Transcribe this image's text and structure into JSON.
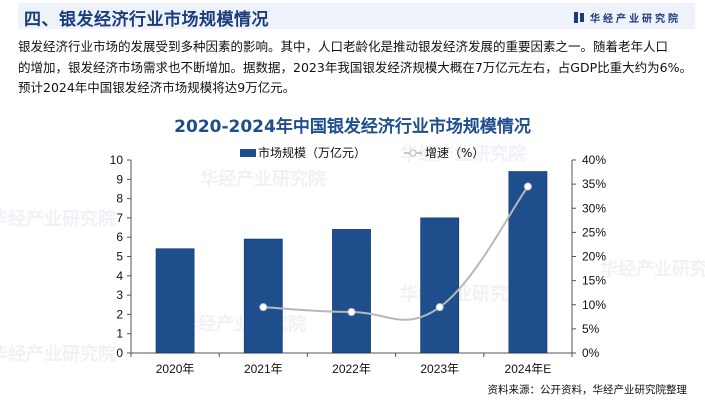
{
  "header": {
    "title": "四、银发经济行业市场规模情况",
    "brand": "华经产业研究院",
    "brand_icon": "book-logo-icon"
  },
  "intro": {
    "lines": [
      "银发经济行业市场的发展受到多种因素的影响。其中，人口老龄化是推动银发经济发展的重要因素之一。随着老年人口",
      "的增加，银发经济市场需求也不断增加。据数据，2023年我国银发经济规模大概在7万亿元左右，占GDP比重大约为6%。",
      "预计2024年中国银发经济市场规模将达9万亿元。"
    ]
  },
  "chart_data": {
    "type": "bar",
    "title": "2020-2024年中国银发经济行业市场规模情况",
    "categories": [
      "2020年",
      "2021年",
      "2022年",
      "2023年",
      "2024年E"
    ],
    "series": [
      {
        "name": "市场规模（万亿元）",
        "type": "bar",
        "axis": "left",
        "color": "#1f4e8c",
        "values": [
          5.4,
          5.9,
          6.4,
          7.0,
          9.4
        ]
      },
      {
        "name": "增速（%）",
        "type": "line",
        "axis": "right",
        "color": "#b8b8b8",
        "values": [
          null,
          9.5,
          8.5,
          9.5,
          34.5
        ]
      }
    ],
    "left_axis": {
      "min": 0,
      "max": 10,
      "step": 1,
      "ticks": [
        "0",
        "1",
        "2",
        "3",
        "4",
        "5",
        "6",
        "7",
        "8",
        "9",
        "10"
      ]
    },
    "right_axis": {
      "min": 0,
      "max": 40,
      "step": 5,
      "ticks": [
        "0%",
        "5%",
        "10%",
        "15%",
        "20%",
        "25%",
        "30%",
        "35%",
        "40%"
      ]
    },
    "xlabel": "",
    "ylabel": "",
    "grid": false,
    "legend_position": "top"
  },
  "legend": {
    "bar_label": "市场规模（万亿元）",
    "line_label": "增速（%）"
  },
  "footer": {
    "source": "资料来源：公开资料，华经产业研究院整理"
  },
  "colors": {
    "accent": "#1f4e8c",
    "title_navy": "#1b3d7c",
    "title_bar_bg": "#eef3fb",
    "line": "#b8b8b8"
  }
}
